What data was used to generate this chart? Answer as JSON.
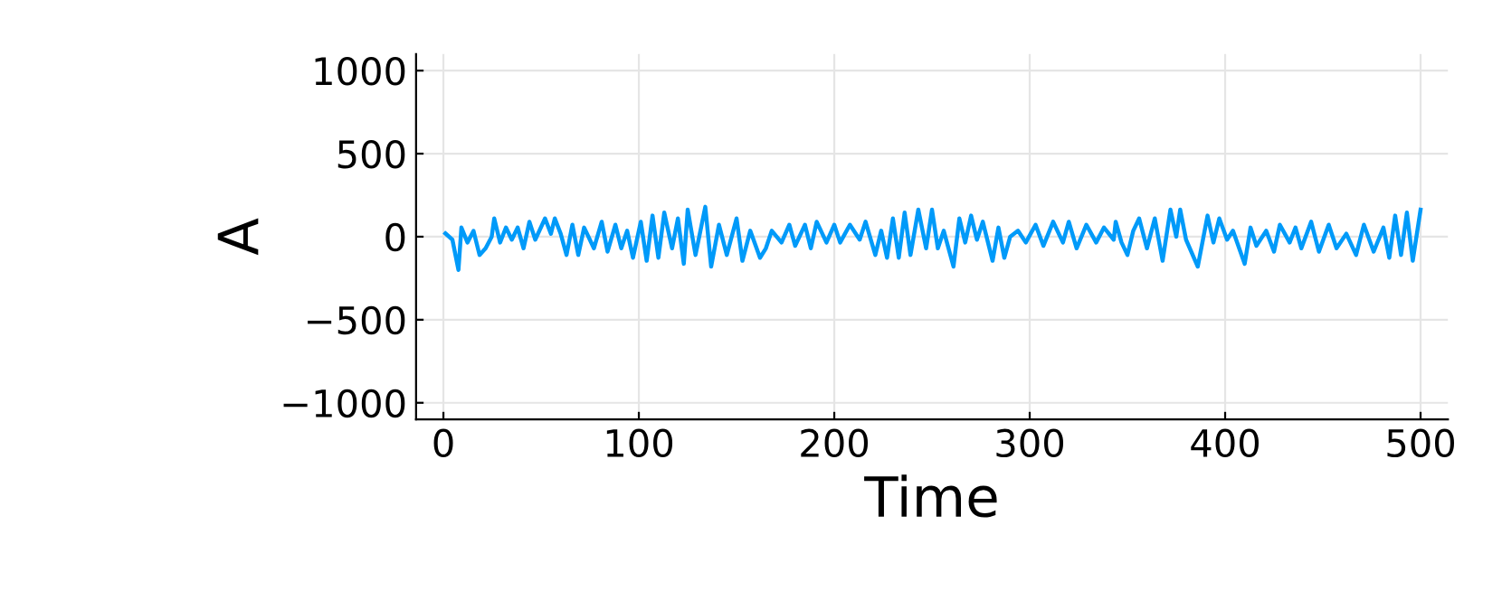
{
  "chart_data": {
    "type": "line",
    "xlabel": "Time",
    "ylabel": "A",
    "x": [
      1,
      4.6,
      7.7,
      9.2,
      12.3,
      15.4,
      18.5,
      21.6,
      24.7,
      26,
      29,
      32,
      35,
      38,
      41,
      44,
      47,
      52,
      55,
      57,
      60,
      63,
      66,
      69,
      72,
      77,
      81,
      84,
      88,
      91,
      94,
      97,
      101,
      104,
      107,
      110,
      113,
      117,
      120,
      123,
      125,
      129,
      134,
      137,
      141,
      145,
      150,
      153,
      157,
      162,
      165,
      168,
      173,
      177,
      180,
      185,
      188,
      191,
      196,
      200,
      203,
      208,
      213,
      216,
      221,
      224,
      227,
      230,
      233,
      236,
      239,
      243,
      247,
      250,
      253,
      256,
      261,
      264,
      267,
      270,
      273,
      276,
      281,
      284,
      287,
      290,
      294,
      298,
      303,
      307,
      312,
      317,
      320,
      324,
      329,
      334,
      338,
      343,
      344,
      347,
      350,
      353,
      356,
      360,
      364,
      368,
      372,
      375,
      377,
      380,
      386,
      391,
      394,
      397,
      401,
      404,
      410,
      413,
      416,
      421,
      425,
      428,
      433,
      436,
      439,
      444,
      448,
      453,
      457,
      462,
      467,
      471,
      476,
      481,
      484,
      487,
      490,
      493,
      496,
      500
    ],
    "series": [
      {
        "color": "#009af9",
        "values": [
          20,
          -18,
          -200,
          55,
          -35,
          35,
          -110,
          -70,
          0,
          110,
          -35,
          55,
          -18,
          55,
          -70,
          90,
          -18,
          110,
          18,
          110,
          18,
          -110,
          72,
          -110,
          55,
          -70,
          90,
          -90,
          72,
          -70,
          36,
          -127,
          90,
          -145,
          127,
          -127,
          145,
          -70,
          110,
          -163,
          163,
          -110,
          180,
          -180,
          72,
          -110,
          110,
          -145,
          36,
          -127,
          -70,
          36,
          -35,
          72,
          -55,
          72,
          -70,
          90,
          -35,
          72,
          -35,
          72,
          -18,
          90,
          -110,
          36,
          -127,
          110,
          -127,
          145,
          -110,
          163,
          -70,
          163,
          -70,
          36,
          -180,
          110,
          -35,
          127,
          -18,
          90,
          -145,
          55,
          -127,
          0,
          36,
          -35,
          72,
          -55,
          90,
          -35,
          90,
          -70,
          72,
          -35,
          55,
          -18,
          90,
          -35,
          -110,
          36,
          110,
          -70,
          110,
          -145,
          163,
          0,
          163,
          -18,
          -180,
          127,
          -35,
          110,
          -18,
          36,
          -163,
          55,
          -55,
          36,
          -90,
          72,
          -35,
          55,
          -70,
          90,
          -90,
          72,
          -70,
          18,
          -110,
          72,
          -90,
          55,
          -127,
          127,
          -110,
          145,
          -145,
          163
        ]
      }
    ],
    "xlim": [
      -14,
      514
    ],
    "ylim": [
      -1100,
      1100
    ],
    "xticks": [
      0,
      100,
      200,
      300,
      400,
      500
    ],
    "yticks": [
      {
        "value": -1000,
        "label": "−1000"
      },
      {
        "value": -500,
        "label": "−500"
      },
      0,
      500,
      1000
    ],
    "grid": true,
    "legend": false
  }
}
